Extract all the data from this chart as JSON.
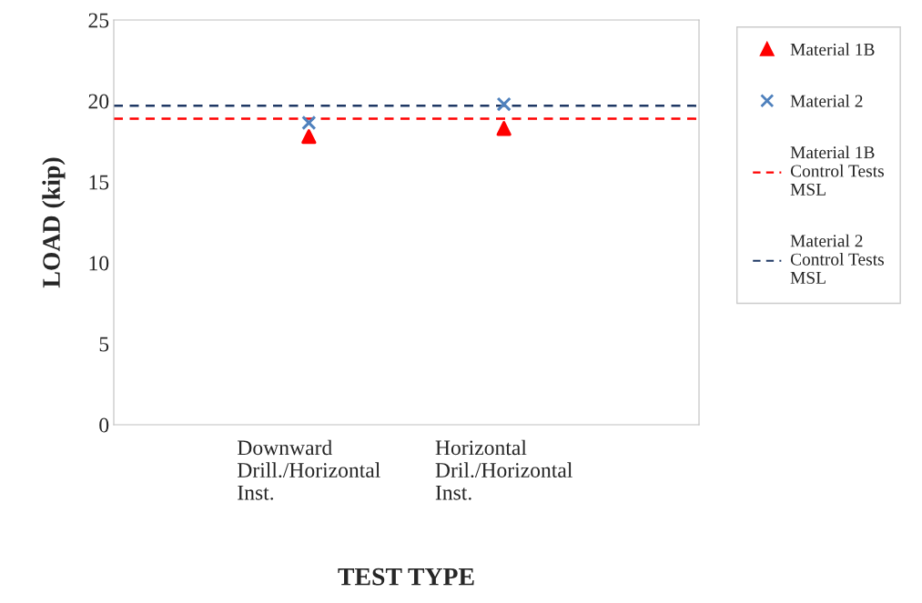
{
  "chart_data": {
    "type": "scatter",
    "xlabel": "TEST TYPE",
    "ylabel": "LOAD (kip)",
    "categories": [
      "Downward\nDrill./Horizontal\nInst.",
      "Horizontal\nDril./Horizontal\nInst."
    ],
    "series": [
      {
        "name": "Material 1B",
        "color": "#ff0000",
        "values": [
          17.8,
          18.3
        ],
        "marker": "triangle"
      },
      {
        "name": "Material 2",
        "color": "#4f81bd",
        "values": [
          18.65,
          19.8
        ],
        "marker": "cross"
      }
    ],
    "ref_lines": [
      {
        "axis": "y",
        "value": 18.9,
        "label": "Material 1B\nControl Tests\nMSL",
        "color": "#ff0000",
        "line_style": "dashed"
      },
      {
        "axis": "y",
        "value": 19.7,
        "label": "Material 2\nControl Tests\nMSL",
        "color": "#1f3864",
        "line_style": "dashed"
      }
    ],
    "ylim": [
      0,
      25
    ],
    "yticks": [
      0,
      5,
      10,
      15,
      20,
      25
    ],
    "grid": false,
    "legend": "right"
  }
}
